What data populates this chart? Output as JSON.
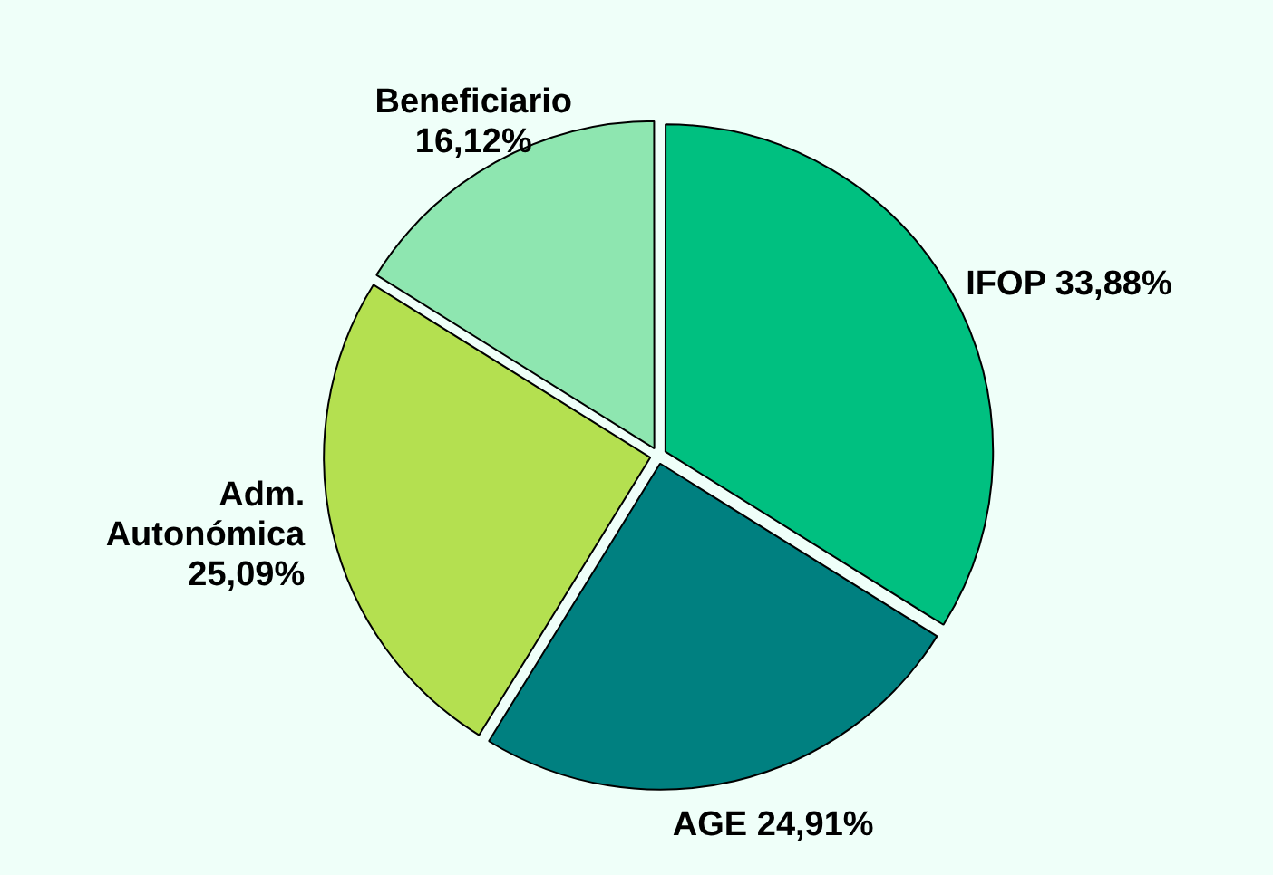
{
  "chart_data": {
    "type": "pie",
    "categories": [
      "IFOP",
      "AGE",
      "Adm. Autonómica",
      "Beneficiario"
    ],
    "values": [
      33.88,
      24.91,
      25.09,
      16.12
    ],
    "value_labels": [
      "33,88%",
      "24,91%",
      "25,09%",
      "16,12%"
    ],
    "colors": [
      "#00c080",
      "#008080",
      "#b4e050",
      "#8ee6b0"
    ],
    "legend": false
  }
}
